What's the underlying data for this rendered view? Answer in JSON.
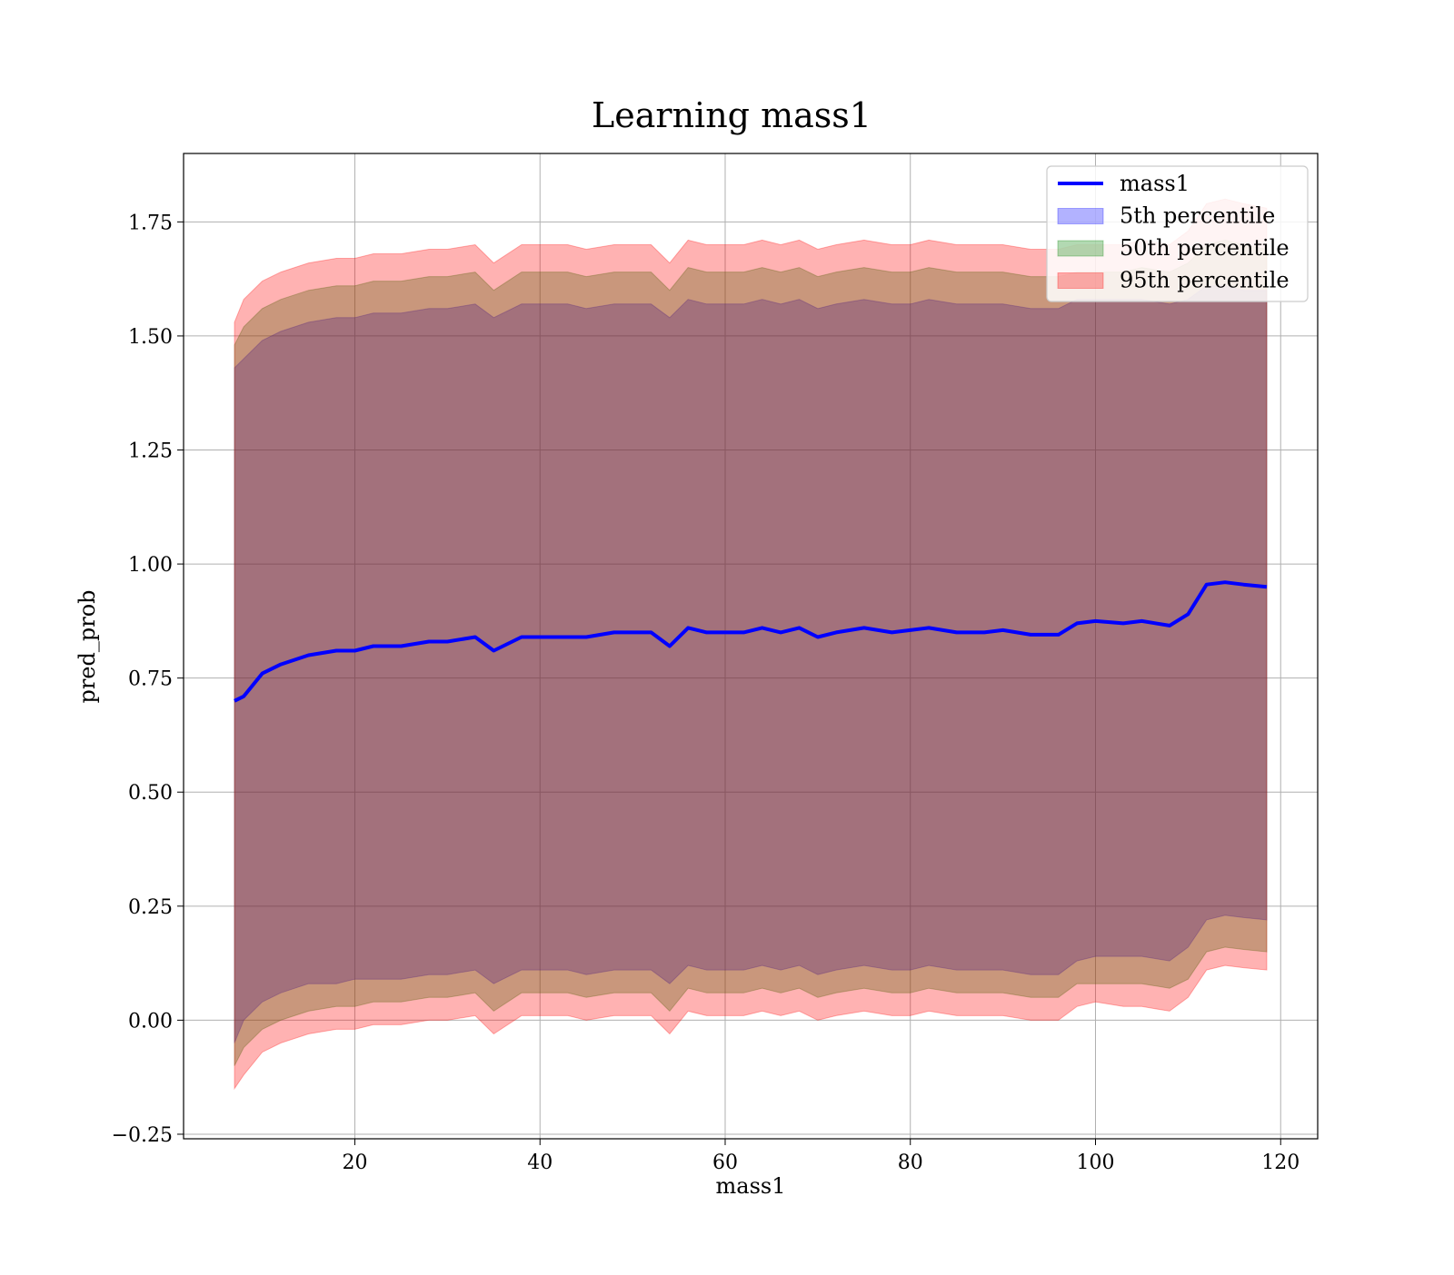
{
  "chart_data": {
    "type": "area",
    "title": "Learning mass1",
    "xlabel": "mass1",
    "ylabel": "pred_prob",
    "xlim": [
      1.5,
      124
    ],
    "ylim": [
      -0.26,
      1.9
    ],
    "grid": true,
    "legend_placement": "top-right",
    "x_ticks": [
      20,
      40,
      60,
      80,
      100,
      120
    ],
    "x_tick_labels": [
      "20",
      "40",
      "60",
      "80",
      "100",
      "120"
    ],
    "y_ticks": [
      -0.25,
      0,
      0.25,
      0.5,
      0.75,
      1.0,
      1.25,
      1.5,
      1.75
    ],
    "y_tick_labels": [
      "−0.25",
      "0.00",
      "0.25",
      "0.50",
      "0.75",
      "1.00",
      "1.25",
      "1.50",
      "1.75"
    ],
    "x": [
      7,
      8,
      10,
      12,
      15,
      18,
      20,
      22,
      25,
      28,
      30,
      33,
      35,
      38,
      40,
      43,
      45,
      48,
      50,
      52,
      54,
      56,
      58,
      60,
      62,
      64,
      66,
      68,
      70,
      72,
      75,
      78,
      80,
      82,
      85,
      88,
      90,
      93,
      96,
      98,
      100,
      103,
      105,
      108,
      110,
      112,
      114,
      116,
      118.5
    ],
    "series": [
      {
        "name": "mass1",
        "kind": "line",
        "color": "#0000ff",
        "values": [
          0.7,
          0.71,
          0.76,
          0.78,
          0.8,
          0.81,
          0.81,
          0.82,
          0.82,
          0.83,
          0.83,
          0.84,
          0.81,
          0.84,
          0.84,
          0.84,
          0.84,
          0.85,
          0.85,
          0.85,
          0.82,
          0.86,
          0.85,
          0.85,
          0.85,
          0.86,
          0.85,
          0.86,
          0.84,
          0.85,
          0.86,
          0.85,
          0.855,
          0.86,
          0.85,
          0.85,
          0.855,
          0.845,
          0.845,
          0.87,
          0.875,
          0.87,
          0.875,
          0.865,
          0.89,
          0.955,
          0.96,
          0.955,
          0.95
        ]
      },
      {
        "name": "5th percentile",
        "kind": "band",
        "color": "#0000ff",
        "lower": [
          -0.05,
          0.0,
          0.04,
          0.06,
          0.08,
          0.08,
          0.09,
          0.09,
          0.09,
          0.1,
          0.1,
          0.11,
          0.08,
          0.11,
          0.11,
          0.11,
          0.1,
          0.11,
          0.11,
          0.11,
          0.08,
          0.12,
          0.11,
          0.11,
          0.11,
          0.12,
          0.11,
          0.12,
          0.1,
          0.11,
          0.12,
          0.11,
          0.11,
          0.12,
          0.11,
          0.11,
          0.11,
          0.1,
          0.1,
          0.13,
          0.14,
          0.14,
          0.14,
          0.13,
          0.16,
          0.22,
          0.23,
          0.225,
          0.22
        ],
        "upper": [
          1.43,
          1.45,
          1.49,
          1.51,
          1.53,
          1.54,
          1.54,
          1.55,
          1.55,
          1.56,
          1.56,
          1.57,
          1.54,
          1.57,
          1.57,
          1.57,
          1.56,
          1.57,
          1.57,
          1.57,
          1.54,
          1.58,
          1.57,
          1.57,
          1.57,
          1.58,
          1.57,
          1.58,
          1.56,
          1.57,
          1.58,
          1.57,
          1.57,
          1.58,
          1.57,
          1.57,
          1.57,
          1.56,
          1.56,
          1.58,
          1.58,
          1.58,
          1.58,
          1.57,
          1.58,
          1.61,
          1.61,
          1.6,
          1.6
        ]
      },
      {
        "name": "50th percentile",
        "kind": "band",
        "color": "#008000",
        "lower": [
          -0.1,
          -0.06,
          -0.02,
          0.0,
          0.02,
          0.03,
          0.03,
          0.04,
          0.04,
          0.05,
          0.05,
          0.06,
          0.02,
          0.06,
          0.06,
          0.06,
          0.05,
          0.06,
          0.06,
          0.06,
          0.02,
          0.07,
          0.06,
          0.06,
          0.06,
          0.07,
          0.06,
          0.07,
          0.05,
          0.06,
          0.07,
          0.06,
          0.06,
          0.07,
          0.06,
          0.06,
          0.06,
          0.05,
          0.05,
          0.08,
          0.08,
          0.08,
          0.08,
          0.07,
          0.09,
          0.15,
          0.16,
          0.155,
          0.15
        ],
        "upper": [
          1.48,
          1.52,
          1.56,
          1.58,
          1.6,
          1.61,
          1.61,
          1.62,
          1.62,
          1.63,
          1.63,
          1.64,
          1.6,
          1.64,
          1.64,
          1.64,
          1.63,
          1.64,
          1.64,
          1.64,
          1.6,
          1.65,
          1.64,
          1.64,
          1.64,
          1.65,
          1.64,
          1.65,
          1.63,
          1.64,
          1.65,
          1.64,
          1.64,
          1.65,
          1.64,
          1.64,
          1.64,
          1.63,
          1.63,
          1.64,
          1.64,
          1.64,
          1.65,
          1.64,
          1.66,
          1.7,
          1.71,
          1.7,
          1.69
        ]
      },
      {
        "name": "95th percentile",
        "kind": "band",
        "color": "#ff0000",
        "lower": [
          -0.15,
          -0.12,
          -0.07,
          -0.05,
          -0.03,
          -0.02,
          -0.02,
          -0.01,
          -0.01,
          0.0,
          0.0,
          0.01,
          -0.03,
          0.01,
          0.01,
          0.01,
          0.0,
          0.01,
          0.01,
          0.01,
          -0.03,
          0.02,
          0.01,
          0.01,
          0.01,
          0.02,
          0.01,
          0.02,
          0.0,
          0.01,
          0.02,
          0.01,
          0.01,
          0.02,
          0.01,
          0.01,
          0.01,
          0.0,
          0.0,
          0.03,
          0.04,
          0.03,
          0.03,
          0.02,
          0.05,
          0.11,
          0.12,
          0.115,
          0.11
        ],
        "upper": [
          1.53,
          1.58,
          1.62,
          1.64,
          1.66,
          1.67,
          1.67,
          1.68,
          1.68,
          1.69,
          1.69,
          1.7,
          1.66,
          1.7,
          1.7,
          1.7,
          1.69,
          1.7,
          1.7,
          1.7,
          1.66,
          1.71,
          1.7,
          1.7,
          1.7,
          1.71,
          1.7,
          1.71,
          1.69,
          1.7,
          1.71,
          1.7,
          1.7,
          1.71,
          1.7,
          1.7,
          1.7,
          1.69,
          1.69,
          1.7,
          1.7,
          1.7,
          1.71,
          1.7,
          1.73,
          1.79,
          1.8,
          1.79,
          1.78
        ]
      }
    ]
  }
}
